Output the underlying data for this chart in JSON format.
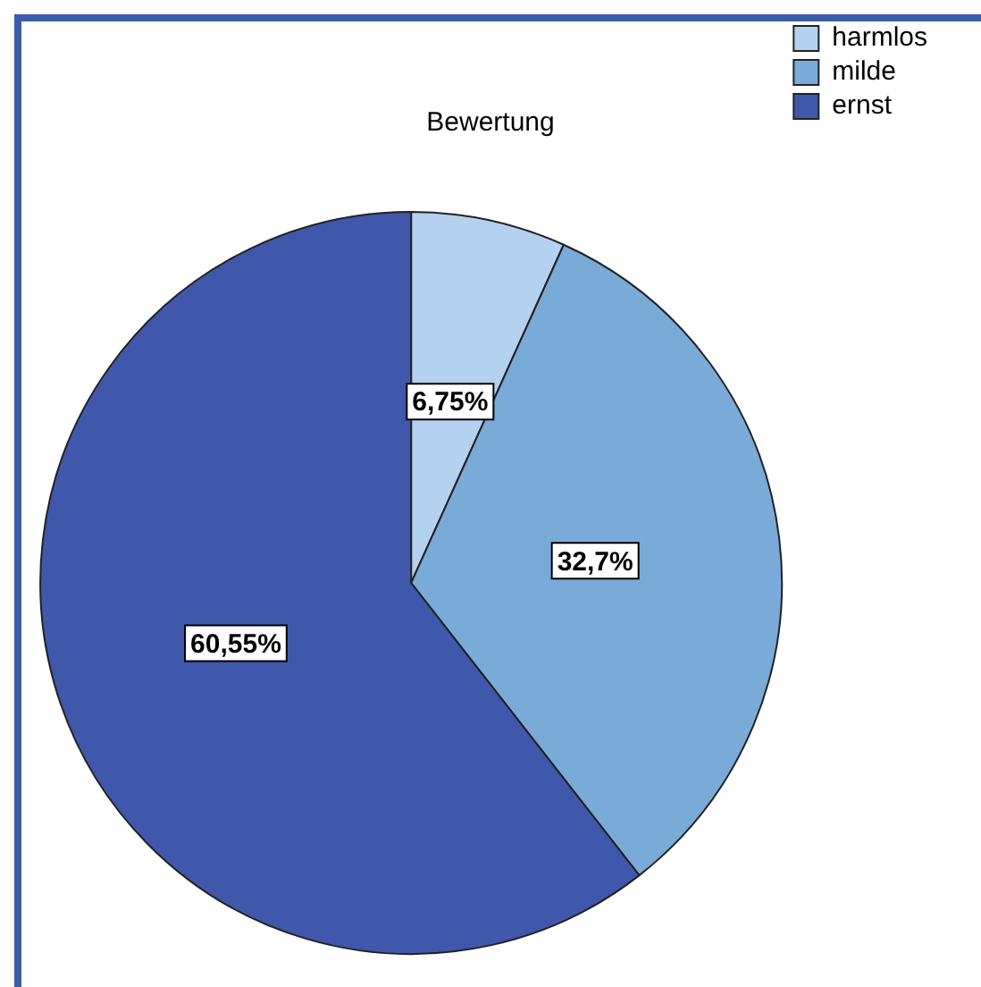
{
  "chart_data": {
    "type": "pie",
    "title": "Bewertung",
    "categories": [
      "harmlos",
      "milde",
      "ernst"
    ],
    "values": [
      6.75,
      32.7,
      60.55
    ],
    "colors": [
      "#b4d2f0",
      "#7aaad8",
      "#3f58ab"
    ],
    "value_labels": [
      "6,75%",
      "32,7%",
      "60,55%"
    ],
    "legend": "top right"
  }
}
